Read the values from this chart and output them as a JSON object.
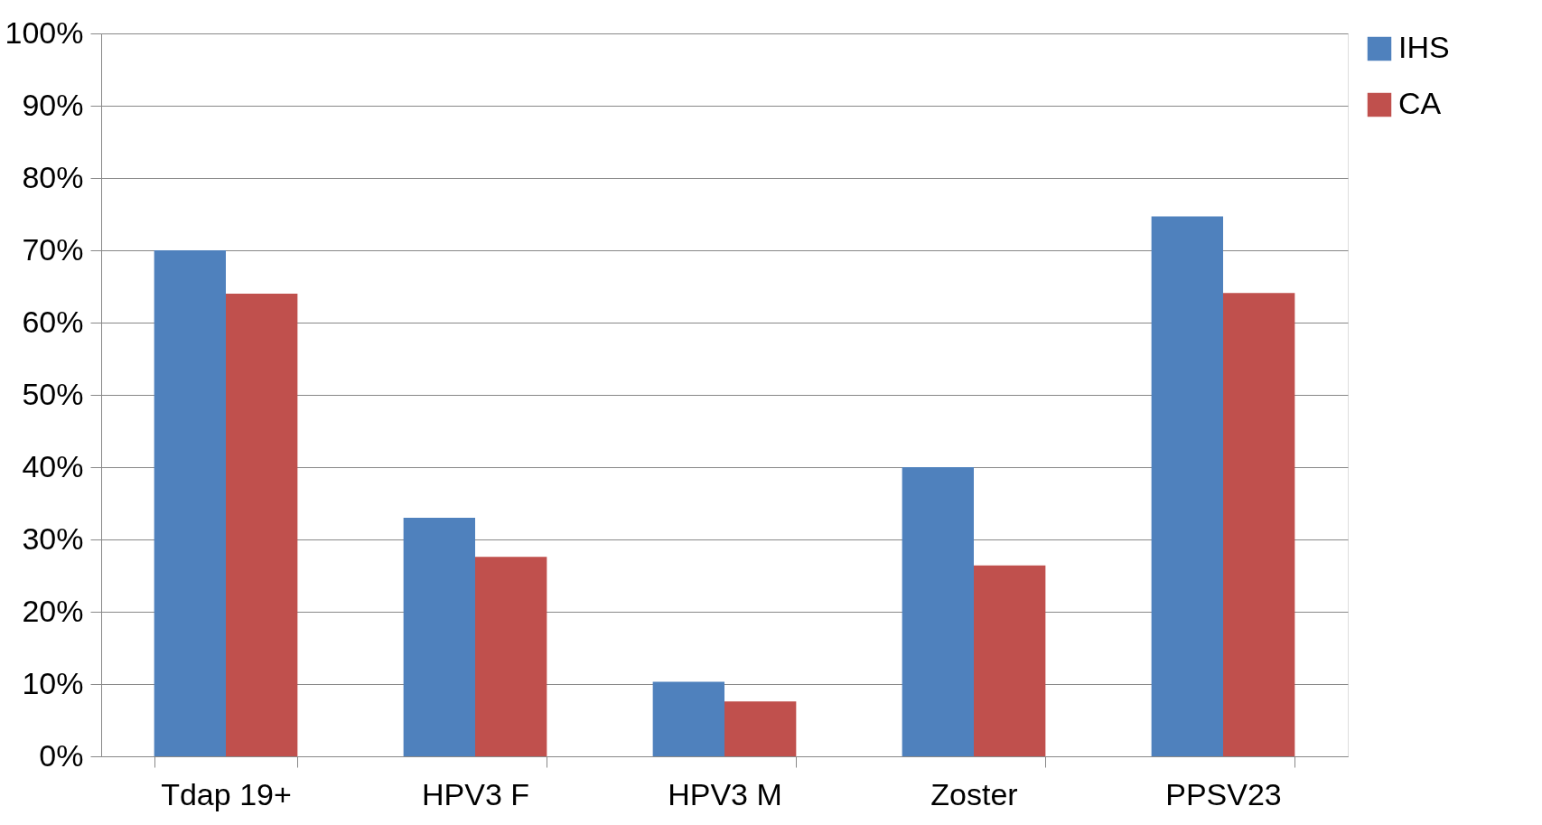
{
  "chart_data": {
    "type": "bar",
    "categories": [
      "Tdap 19+",
      "HPV3 F",
      "HPV3 M",
      "Zoster",
      "PPSV23"
    ],
    "series": [
      {
        "name": "IHS",
        "color": "#4f81bd",
        "values": [
          70,
          33,
          10.3,
          40,
          74.7
        ]
      },
      {
        "name": "CA",
        "color": "#c0504d",
        "values": [
          64,
          27.6,
          7.6,
          26.4,
          64.1
        ]
      }
    ],
    "ylim": [
      0,
      100
    ],
    "yticks": [
      {
        "value": 0,
        "label": "0%"
      },
      {
        "value": 10,
        "label": "10%"
      },
      {
        "value": 20,
        "label": "20%"
      },
      {
        "value": 30,
        "label": "30%"
      },
      {
        "value": 40,
        "label": "40%"
      },
      {
        "value": 50,
        "label": "50%"
      },
      {
        "value": 60,
        "label": "60%"
      },
      {
        "value": 70,
        "label": "70%"
      },
      {
        "value": 80,
        "label": "80%"
      },
      {
        "value": 90,
        "label": "90%"
      },
      {
        "value": 100,
        "label": "100%"
      }
    ],
    "grid": "y",
    "legend": "right"
  }
}
